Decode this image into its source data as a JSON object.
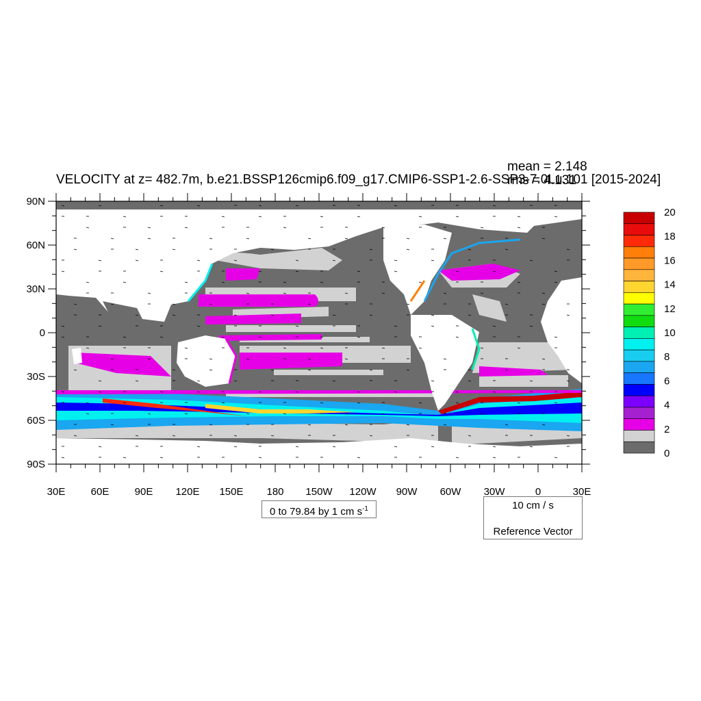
{
  "title": "VELOCITY at z= 482.7m, b.e21.BSSP126cmip6.f09_g17.CMIP6-SSP1-2.6-SSP3-7.0Lu.101 [2015-2024]",
  "stats": {
    "mean": "mean = 2.148",
    "rms": "rms = 4.131"
  },
  "axes": {
    "lat_labels": [
      "90N",
      "60N",
      "30N",
      "0",
      "30S",
      "60S",
      "90S"
    ],
    "lon_labels": [
      "30E",
      "60E",
      "90E",
      "120E",
      "150E",
      "180",
      "150W",
      "120W",
      "90W",
      "60W",
      "30W",
      "0",
      "30E"
    ]
  },
  "range_label": {
    "text": "0 to 79.84 by 1 cm s",
    "sup": "-1"
  },
  "reference_vector": {
    "magnitude": "10 cm / s",
    "label": "Reference Vector"
  },
  "colorbar": {
    "labels": [
      "20",
      "18",
      "16",
      "14",
      "12",
      "10",
      "8",
      "6",
      "4",
      "2",
      "0"
    ],
    "colors": [
      "#c80000",
      "#e80c0c",
      "#ff2a0a",
      "#ff7f0a",
      "#ff9a28",
      "#ffb43c",
      "#ffd530",
      "#ffff00",
      "#32ee32",
      "#10dc10",
      "#00f0b4",
      "#00f0f0",
      "#18cdf0",
      "#1aa6f0",
      "#1777ff",
      "#0000ff",
      "#7d00ff",
      "#a520d0",
      "#e600e6",
      "#d2d2d2",
      "#6c6c6c"
    ]
  },
  "palette": {
    "ocean_dark": "#6c6c6c",
    "ocean_light": "#d2d2d2",
    "land": "#ffffff",
    "magenta": "#e600e6"
  }
}
